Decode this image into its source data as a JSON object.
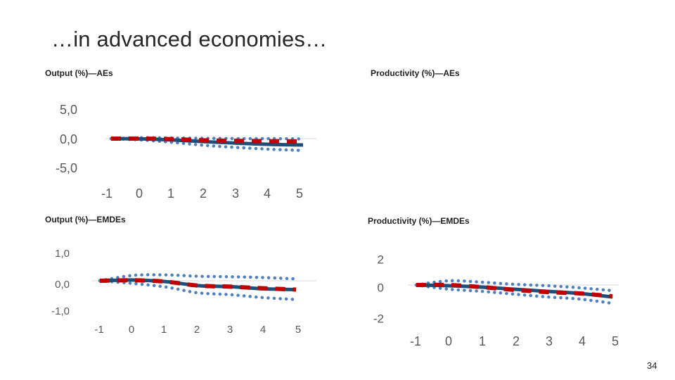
{
  "slide": {
    "title": "…in advanced economies…",
    "page_number": "34"
  },
  "colors": {
    "median": "#1f4e79",
    "bands": "#4f81bd",
    "baseline": "#c00000",
    "axis": "#d9d9d9",
    "tick_text": "#595959"
  },
  "chart_data": [
    {
      "id": "output-aes",
      "type": "line",
      "title": "Output (%)—AEs",
      "x": [
        -1,
        0,
        1,
        2,
        3,
        4,
        5
      ],
      "xticks": [
        "-1",
        "0",
        "1",
        "2",
        "3",
        "4",
        "5"
      ],
      "yticks": [
        "5,0",
        "0,0",
        "-5,0"
      ],
      "ylim": [
        -5,
        5
      ],
      "series": [
        {
          "role": "median",
          "style": "solid",
          "values": [
            0.0,
            -0.05,
            -0.25,
            -0.55,
            -0.8,
            -1.0,
            -1.1
          ]
        },
        {
          "role": "upper-band",
          "style": "dotted",
          "values": [
            0.0,
            0.15,
            0.1,
            0.05,
            0.0,
            0.0,
            -0.05
          ]
        },
        {
          "role": "lower-band",
          "style": "dotted",
          "values": [
            0.0,
            -0.25,
            -0.7,
            -1.2,
            -1.55,
            -1.85,
            -2.05
          ]
        },
        {
          "role": "baseline",
          "style": "dashed",
          "values": [
            0.0,
            0.0,
            -0.1,
            -0.3,
            -0.4,
            -0.45,
            -0.5
          ]
        }
      ]
    },
    {
      "id": "productivity-aes",
      "type": "line",
      "title": "Productivity (%)—AEs",
      "series": []
    },
    {
      "id": "output-emdes",
      "type": "line",
      "title": "Output (%)—EMDEs",
      "x": [
        -1,
        0,
        1,
        2,
        3,
        4,
        5
      ],
      "xticks": [
        "-1",
        "0",
        "1",
        "2",
        "3",
        "4",
        "5"
      ],
      "yticks": [
        "1,0",
        "0,0",
        "-1,0"
      ],
      "ylim": [
        -1,
        1
      ],
      "series": [
        {
          "role": "median",
          "style": "solid",
          "values": [
            0.0,
            0.03,
            -0.03,
            -0.18,
            -0.22,
            -0.3,
            -0.33
          ]
        },
        {
          "role": "upper-band",
          "style": "dotted",
          "values": [
            0.0,
            0.2,
            0.22,
            0.17,
            0.15,
            0.12,
            0.07
          ]
        },
        {
          "role": "lower-band",
          "style": "dotted",
          "values": [
            0.0,
            -0.1,
            -0.23,
            -0.45,
            -0.52,
            -0.63,
            -0.7
          ]
        },
        {
          "role": "baseline",
          "style": "dashed",
          "values": [
            0.0,
            0.02,
            -0.03,
            -0.18,
            -0.22,
            -0.28,
            -0.33
          ]
        }
      ]
    },
    {
      "id": "productivity-emdes",
      "type": "line",
      "title": "Productivity (%)—EMDEs",
      "x": [
        -1,
        0,
        1,
        2,
        3,
        4,
        5
      ],
      "xticks": [
        "-1",
        "0",
        "1",
        "2",
        "3",
        "4",
        "5"
      ],
      "yticks": [
        "2",
        "0",
        "-2"
      ],
      "ylim": [
        -2,
        2
      ],
      "series": [
        {
          "role": "median",
          "style": "solid",
          "values": [
            0.0,
            -0.05,
            -0.15,
            -0.3,
            -0.45,
            -0.6,
            -0.85
          ]
        },
        {
          "role": "upper-band",
          "style": "dotted",
          "values": [
            0.0,
            0.3,
            0.2,
            0.05,
            -0.05,
            -0.2,
            -0.4
          ]
        },
        {
          "role": "lower-band",
          "style": "dotted",
          "values": [
            0.0,
            -0.3,
            -0.45,
            -0.65,
            -0.85,
            -1.0,
            -1.3
          ]
        },
        {
          "role": "baseline",
          "style": "dashed",
          "values": [
            0.0,
            0.0,
            -0.15,
            -0.35,
            -0.5,
            -0.6,
            -0.8
          ]
        }
      ]
    }
  ]
}
